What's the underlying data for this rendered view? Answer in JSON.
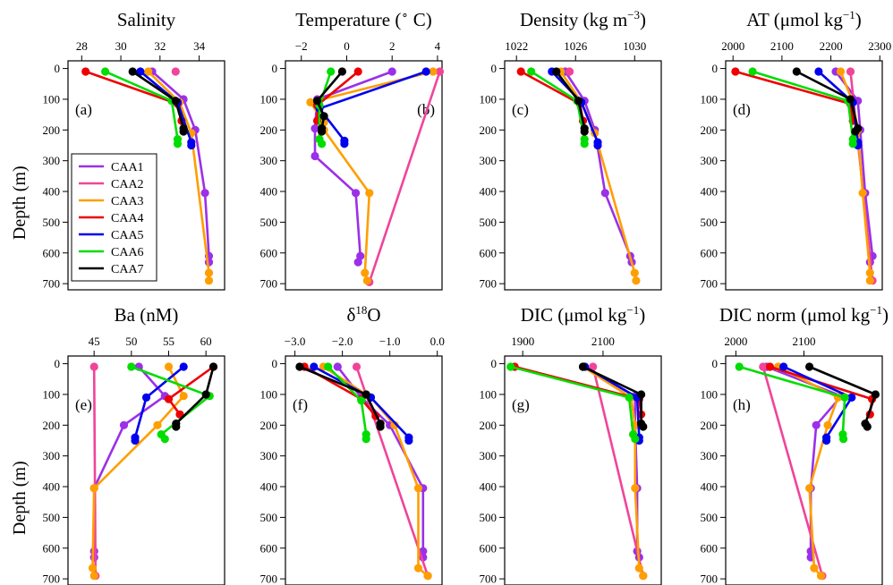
{
  "colors": {
    "CAA1": "#9b30e8",
    "CAA2": "#f0449a",
    "CAA3": "#ff9e00",
    "CAA4": "#ee0000",
    "CAA5": "#0000ee",
    "CAA6": "#00dd00",
    "CAA7": "#000000"
  },
  "shared": {
    "y_axis_label": "Depth (m)",
    "y_ticks": [
      0,
      100,
      200,
      300,
      400,
      500,
      600,
      700
    ],
    "y_range": [
      -25,
      720
    ],
    "legend": [
      "CAA1",
      "CAA2",
      "CAA3",
      "CAA4",
      "CAA5",
      "CAA6",
      "CAA7"
    ],
    "legend_position": "lower-left of panel (a)"
  },
  "chart_data": [
    {
      "type": "line",
      "panel": "(a)",
      "title_main": "Salinity",
      "title_sup": "",
      "x_ticks": [
        "28",
        "30",
        "32",
        "34"
      ],
      "x_tick_values": [
        28,
        30,
        32,
        34
      ],
      "xlim": [
        27.3,
        35.3
      ],
      "series": [
        {
          "name": "CAA1",
          "x": [
            31.6,
            33.2,
            33.8,
            34.3,
            34.5,
            34.5
          ],
          "y": [
            10,
            100,
            200,
            405,
            610,
            630
          ]
        },
        {
          "name": "CAA2",
          "x": [
            32.8
          ],
          "y": [
            10
          ]
        },
        {
          "name": "CAA3",
          "x": [
            31.4,
            33.0,
            33.6,
            34.5,
            34.5
          ],
          "y": [
            10,
            110,
            210,
            665,
            690
          ]
        },
        {
          "name": "CAA4",
          "x": [
            28.2,
            32.9,
            33.1
          ],
          "y": [
            10,
            115,
            170
          ]
        },
        {
          "name": "CAA5",
          "x": [
            31.0,
            32.9,
            33.6,
            33.6
          ],
          "y": [
            10,
            110,
            240,
            250
          ]
        },
        {
          "name": "CAA6",
          "x": [
            29.2,
            32.6,
            32.9,
            32.9
          ],
          "y": [
            10,
            105,
            230,
            245
          ]
        },
        {
          "name": "CAA7",
          "x": [
            30.6,
            32.8,
            33.2,
            33.2
          ],
          "y": [
            10,
            105,
            195,
            205
          ]
        }
      ]
    },
    {
      "type": "line",
      "panel": "(b)",
      "title_main": "Temperature (",
      "title_sup": "∘",
      "title_tail": " C)",
      "x_ticks": [
        "−2",
        "0",
        "2",
        "4"
      ],
      "x_tick_values": [
        -2,
        0,
        2,
        4
      ],
      "xlim": [
        -2.7,
        4.2
      ],
      "series": [
        {
          "name": "CAA1",
          "x": [
            2.0,
            -1.3,
            -1.4,
            -1.4,
            0.4,
            0.6,
            0.5
          ],
          "y": [
            10,
            100,
            195,
            285,
            405,
            610,
            630
          ]
        },
        {
          "name": "CAA2",
          "x": [
            4.1,
            1.0
          ],
          "y": [
            10,
            695
          ]
        },
        {
          "name": "CAA3",
          "x": [
            3.8,
            -1.6,
            -1.0,
            -1.0,
            1.0,
            0.8,
            0.9
          ],
          "y": [
            10,
            110,
            175,
            200,
            405,
            665,
            690
          ]
        },
        {
          "name": "CAA4",
          "x": [
            0.5,
            -1.3,
            -1.3
          ],
          "y": [
            10,
            120,
            170
          ]
        },
        {
          "name": "CAA5",
          "x": [
            3.5,
            -1.2,
            -0.1,
            -0.1
          ],
          "y": [
            10,
            130,
            235,
            245
          ]
        },
        {
          "name": "CAA6",
          "x": [
            -0.7,
            -1.2,
            -1.2,
            -1.1
          ],
          "y": [
            10,
            120,
            230,
            245
          ]
        },
        {
          "name": "CAA7",
          "x": [
            -0.2,
            -1.3,
            -1.0,
            -1.1,
            -1.1
          ],
          "y": [
            10,
            105,
            155,
            195,
            205
          ]
        }
      ]
    },
    {
      "type": "line",
      "panel": "(c)",
      "title_main": "Density (kg m",
      "title_sup": "−3",
      "title_tail": ")",
      "x_ticks": [
        "1022",
        "1026",
        "1030"
      ],
      "x_tick_values": [
        1022,
        1026,
        1030
      ],
      "xlim": [
        1021.2,
        1031.8
      ],
      "series": [
        {
          "name": "CAA1",
          "x": [
            1025.3,
            1026.6,
            1027.3,
            1028.0,
            1029.7,
            1029.8
          ],
          "y": [
            10,
            105,
            200,
            405,
            610,
            630
          ]
        },
        {
          "name": "CAA2",
          "x": [
            1025.6
          ],
          "y": [
            10
          ]
        },
        {
          "name": "CAA3",
          "x": [
            1025.0,
            1026.4,
            1027.3,
            1030.0,
            1030.1
          ],
          "y": [
            10,
            110,
            210,
            665,
            690
          ]
        },
        {
          "name": "CAA4",
          "x": [
            1022.3,
            1026.3,
            1026.5
          ],
          "y": [
            10,
            115,
            170
          ]
        },
        {
          "name": "CAA5",
          "x": [
            1024.4,
            1026.4,
            1027.5,
            1027.5
          ],
          "y": [
            10,
            110,
            240,
            250
          ]
        },
        {
          "name": "CAA6",
          "x": [
            1023.0,
            1026.1,
            1026.6,
            1026.6
          ],
          "y": [
            10,
            105,
            230,
            245
          ]
        },
        {
          "name": "CAA7",
          "x": [
            1024.7,
            1026.2,
            1026.6,
            1026.6
          ],
          "y": [
            10,
            105,
            195,
            205
          ]
        }
      ]
    },
    {
      "type": "line",
      "panel": "(d)",
      "title_main": "AT (μmol kg",
      "title_sup": "−1",
      "title_tail": ")",
      "x_ticks": [
        "2000",
        "2100",
        "2200",
        "2300"
      ],
      "x_tick_values": [
        2000,
        2100,
        2200,
        2300
      ],
      "xlim": [
        1985,
        2305
      ],
      "series": [
        {
          "name": "CAA1",
          "x": [
            2210,
            2255,
            2260,
            2270,
            2285,
            2280
          ],
          "y": [
            10,
            105,
            200,
            405,
            610,
            630
          ]
        },
        {
          "name": "CAA2",
          "x": [
            2240,
            2285
          ],
          "y": [
            10,
            690
          ]
        },
        {
          "name": "CAA3",
          "x": [
            2220,
            2245,
            2255,
            2265,
            2280,
            2280
          ],
          "y": [
            10,
            110,
            200,
            405,
            665,
            690
          ]
        },
        {
          "name": "CAA4",
          "x": [
            2005,
            2240,
            2245
          ],
          "y": [
            10,
            115,
            170
          ]
        },
        {
          "name": "CAA5",
          "x": [
            2175,
            2245,
            2255,
            2255
          ],
          "y": [
            10,
            110,
            240,
            250
          ]
        },
        {
          "name": "CAA6",
          "x": [
            2040,
            2235,
            2245,
            2245
          ],
          "y": [
            10,
            105,
            230,
            245
          ]
        },
        {
          "name": "CAA7",
          "x": [
            2130,
            2240,
            2255,
            2250
          ],
          "y": [
            10,
            100,
            195,
            205
          ]
        }
      ]
    },
    {
      "type": "line",
      "panel": "(e)",
      "title_main": "Ba (nM)",
      "title_sup": "",
      "x_ticks": [
        "45",
        "50",
        "55",
        "60"
      ],
      "x_tick_values": [
        45,
        50,
        55,
        60
      ],
      "xlim": [
        41.5,
        62.5
      ],
      "series": [
        {
          "name": "CAA1",
          "x": [
            51.0,
            54.5,
            49.0,
            45.0,
            45.0,
            45.0
          ],
          "y": [
            10,
            105,
            200,
            405,
            610,
            630
          ]
        },
        {
          "name": "CAA2",
          "x": [
            45.0,
            45.2
          ],
          "y": [
            10,
            690
          ]
        },
        {
          "name": "CAA3",
          "x": [
            55.0,
            57.0,
            53.5,
            45.0,
            44.8,
            45.0
          ],
          "y": [
            10,
            105,
            200,
            405,
            665,
            690
          ]
        },
        {
          "name": "CAA4",
          "x": [
            61.0,
            55.0,
            56.5
          ],
          "y": [
            10,
            115,
            165
          ]
        },
        {
          "name": "CAA5",
          "x": [
            57.0,
            52.0,
            50.5,
            50.5
          ],
          "y": [
            10,
            110,
            240,
            250
          ]
        },
        {
          "name": "CAA6",
          "x": [
            50.0,
            60.5,
            54.0,
            54.5
          ],
          "y": [
            10,
            105,
            230,
            245
          ]
        },
        {
          "name": "CAA7",
          "x": [
            61.0,
            60.0,
            56.0,
            56.0
          ],
          "y": [
            10,
            100,
            195,
            205
          ]
        }
      ]
    },
    {
      "type": "line",
      "panel": "(f)",
      "title_main": "δ",
      "title_sup": "18",
      "title_tail": "O",
      "x_ticks": [
        "−3.0",
        "−2.0",
        "−1.0",
        "0.0"
      ],
      "x_tick_values": [
        -3,
        -2,
        -1,
        0
      ],
      "xlim": [
        -3.2,
        0.1
      ],
      "series": [
        {
          "name": "CAA1",
          "x": [
            -2.1,
            -1.6,
            -1.0,
            -0.3,
            -0.3,
            -0.3
          ],
          "y": [
            10,
            110,
            200,
            405,
            610,
            630
          ]
        },
        {
          "name": "CAA2",
          "x": [
            -1.7,
            -0.2
          ],
          "y": [
            10,
            690
          ]
        },
        {
          "name": "CAA3",
          "x": [
            -2.4,
            -1.4,
            -0.9,
            -0.4,
            -0.4,
            -0.2
          ],
          "y": [
            10,
            110,
            200,
            405,
            665,
            690
          ]
        },
        {
          "name": "CAA4",
          "x": [
            -2.8,
            -1.6,
            -1.3
          ],
          "y": [
            10,
            115,
            170
          ]
        },
        {
          "name": "CAA5",
          "x": [
            -2.6,
            -1.4,
            -0.6,
            -0.6
          ],
          "y": [
            10,
            110,
            240,
            250
          ]
        },
        {
          "name": "CAA6",
          "x": [
            -2.3,
            -1.6,
            -1.5,
            -1.5
          ],
          "y": [
            10,
            120,
            230,
            245
          ]
        },
        {
          "name": "CAA7",
          "x": [
            -2.9,
            -1.5,
            -1.2,
            -1.2
          ],
          "y": [
            10,
            100,
            195,
            205
          ]
        }
      ]
    },
    {
      "type": "line",
      "panel": "(g)",
      "title_main": "DIC (μmol kg",
      "title_sup": "−1",
      "title_tail": ")",
      "x_ticks": [
        "1900",
        "2100"
      ],
      "x_tick_values": [
        1900,
        2100
      ],
      "xlim": [
        1855,
        2245
      ],
      "series": [
        {
          "name": "CAA1",
          "x": [
            2050,
            2180,
            2180,
            2185,
            2185,
            2190
          ],
          "y": [
            10,
            105,
            200,
            405,
            610,
            630
          ]
        },
        {
          "name": "CAA2",
          "x": [
            2075,
            2200
          ],
          "y": [
            10,
            690
          ]
        },
        {
          "name": "CAA3",
          "x": [
            2050,
            2170,
            2180,
            2180,
            2190,
            2200
          ],
          "y": [
            10,
            110,
            200,
            405,
            665,
            690
          ]
        },
        {
          "name": "CAA4",
          "x": [
            1880,
            2190,
            2195
          ],
          "y": [
            10,
            115,
            165
          ]
        },
        {
          "name": "CAA5",
          "x": [
            2055,
            2185,
            2190,
            2190
          ],
          "y": [
            10,
            110,
            240,
            250
          ]
        },
        {
          "name": "CAA6",
          "x": [
            1870,
            2165,
            2175,
            2180
          ],
          "y": [
            10,
            110,
            230,
            245
          ]
        },
        {
          "name": "CAA7",
          "x": [
            2050,
            2195,
            2195,
            2200
          ],
          "y": [
            10,
            100,
            195,
            205
          ]
        }
      ]
    },
    {
      "type": "line",
      "panel": "(h)",
      "title_main": "DIC norm (μmol kg",
      "title_sup": "−1",
      "title_tail": ")",
      "x_ticks": [
        "2000",
        "2100"
      ],
      "x_tick_values": [
        2000,
        2100
      ],
      "xlim": [
        1985,
        2215
      ],
      "series": [
        {
          "name": "CAA1",
          "x": [
            2045,
            2155,
            2118,
            2110,
            2110,
            2110
          ],
          "y": [
            10,
            105,
            200,
            405,
            610,
            630
          ]
        },
        {
          "name": "CAA2",
          "x": [
            2040,
            2127
          ],
          "y": [
            10,
            690
          ]
        },
        {
          "name": "CAA3",
          "x": [
            2062,
            2150,
            2135,
            2108,
            2115,
            2125
          ],
          "y": [
            10,
            110,
            200,
            405,
            665,
            690
          ]
        },
        {
          "name": "CAA4",
          "x": [
            2050,
            2200,
            2197
          ],
          "y": [
            10,
            115,
            165
          ]
        },
        {
          "name": "CAA5",
          "x": [
            2070,
            2170,
            2133,
            2133
          ],
          "y": [
            10,
            110,
            240,
            250
          ]
        },
        {
          "name": "CAA6",
          "x": [
            2005,
            2160,
            2157,
            2158
          ],
          "y": [
            10,
            110,
            230,
            245
          ]
        },
        {
          "name": "CAA7",
          "x": [
            2108,
            2205,
            2190,
            2193
          ],
          "y": [
            10,
            100,
            195,
            205
          ]
        }
      ]
    }
  ]
}
